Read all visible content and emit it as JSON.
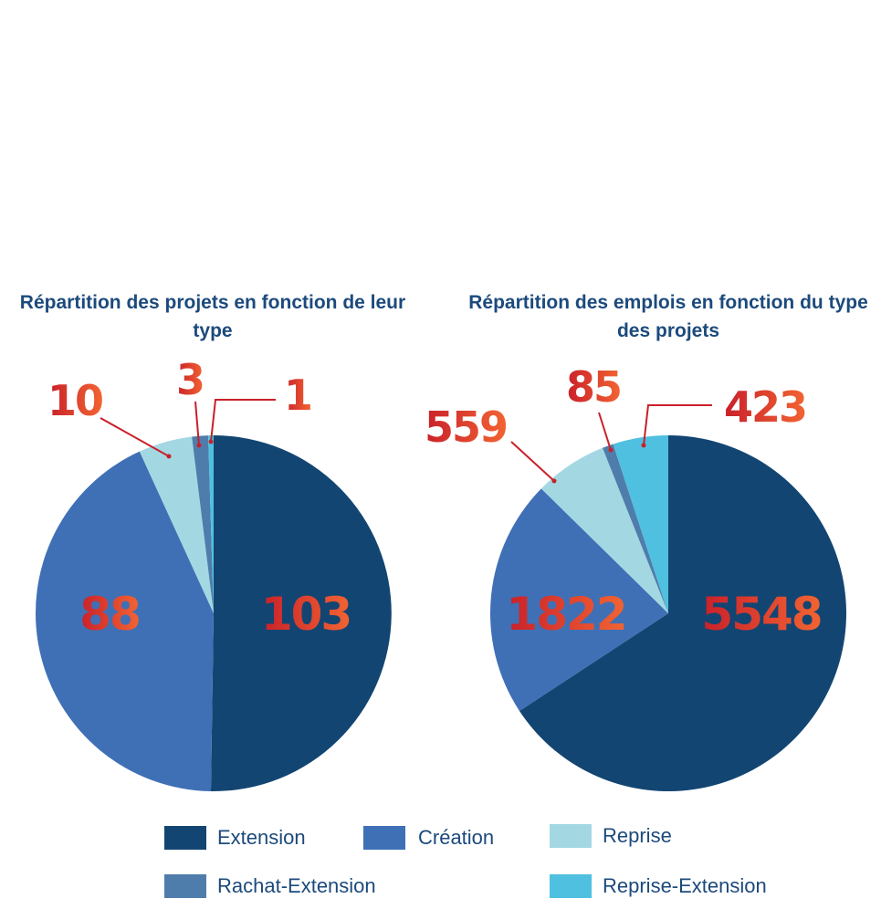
{
  "colors": {
    "Extension": "#134572",
    "Création": "#3f70b6",
    "Reprise": "#a3d8e3",
    "Rachat-Extension": "#4f7dab",
    "Reprise-Extension": "#4fc0e0",
    "label_red": "#c9202a",
    "label_orange": "#f26432",
    "title": "#1c4a7c"
  },
  "legend": {
    "extension": "Extension",
    "creation": "Création",
    "reprise": "Reprise",
    "rachat_extension": "Rachat-Extension",
    "reprise_extension": "Reprise-Extension"
  },
  "chart_data": [
    {
      "type": "pie",
      "title": "Répartition des projets en fonction de leur type",
      "slices": [
        {
          "category": "Extension",
          "value": 103,
          "label": "103"
        },
        {
          "category": "Création",
          "value": 88,
          "label": "88"
        },
        {
          "category": "Reprise",
          "value": 10,
          "label": "10"
        },
        {
          "category": "Rachat-Extension",
          "value": 3,
          "label": "3"
        },
        {
          "category": "Reprise-Extension",
          "value": 1,
          "label": "1"
        }
      ]
    },
    {
      "type": "pie",
      "title": "Répartition des emplois en fonction du type des projets",
      "slices": [
        {
          "category": "Extension",
          "value": 5548,
          "label": "5548"
        },
        {
          "category": "Création",
          "value": 1822,
          "label": "1822"
        },
        {
          "category": "Reprise",
          "value": 559,
          "label": "559"
        },
        {
          "category": "Rachat-Extension",
          "value": 85,
          "label": "85"
        },
        {
          "category": "Reprise-Extension",
          "value": 423,
          "label": "423"
        }
      ]
    }
  ]
}
